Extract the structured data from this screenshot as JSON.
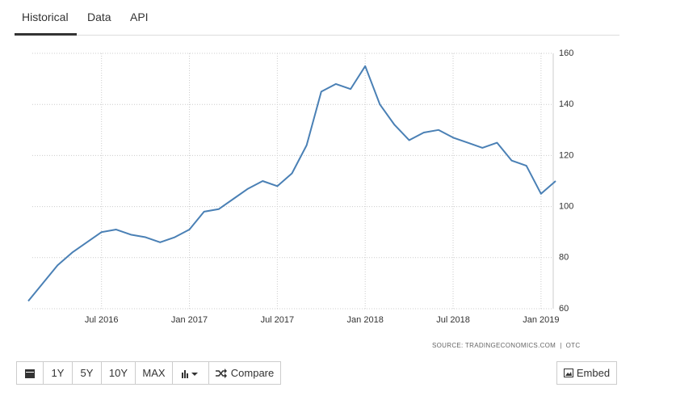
{
  "tabs": [
    "Historical",
    "Data",
    "API"
  ],
  "toolbar": [
    "1Y",
    "5Y",
    "10Y",
    "MAX",
    "Compare"
  ],
  "embed": "Embed",
  "source": "SOURCE: TRADINGECONOMICS.COM  |  OTC",
  "chart_data": {
    "type": "line",
    "x": [
      "2016-02",
      "2016-03",
      "2016-04",
      "2016-05",
      "2016-06",
      "2016-07",
      "2016-08",
      "2016-09",
      "2016-10",
      "2016-11",
      "2016-12",
      "2017-01",
      "2017-02",
      "2017-03",
      "2017-04",
      "2017-05",
      "2017-06",
      "2017-07",
      "2017-08",
      "2017-09",
      "2017-10",
      "2017-11",
      "2017-12",
      "2018-01",
      "2018-02",
      "2018-03",
      "2018-04",
      "2018-05",
      "2018-06",
      "2018-07",
      "2018-08",
      "2018-09",
      "2018-10",
      "2018-11",
      "2018-12",
      "2019-01",
      "2019-02"
    ],
    "series": [
      {
        "name": "OTC",
        "color": "#4a80b5",
        "values": [
          63,
          70,
          77,
          82,
          86,
          90,
          91,
          89,
          88,
          86,
          88,
          91,
          98,
          99,
          103,
          107,
          110,
          108,
          113,
          124,
          145,
          148,
          146,
          155,
          140,
          132,
          126,
          129,
          130,
          127,
          125,
          123,
          125,
          118,
          116,
          105,
          110
        ]
      }
    ],
    "xlim": [
      "2016-02",
      "2019-02"
    ],
    "xticks": [
      {
        "value": "2016-07",
        "label": "Jul 2016"
      },
      {
        "value": "2017-01",
        "label": "Jan 2017"
      },
      {
        "value": "2017-07",
        "label": "Jul 2017"
      },
      {
        "value": "2018-01",
        "label": "Jan 2018"
      },
      {
        "value": "2018-07",
        "label": "Jul 2018"
      },
      {
        "value": "2019-01",
        "label": "Jan 2019"
      }
    ],
    "ylim": [
      60,
      160
    ],
    "yticks": [
      60,
      80,
      100,
      120,
      140,
      160
    ],
    "grid": true
  }
}
